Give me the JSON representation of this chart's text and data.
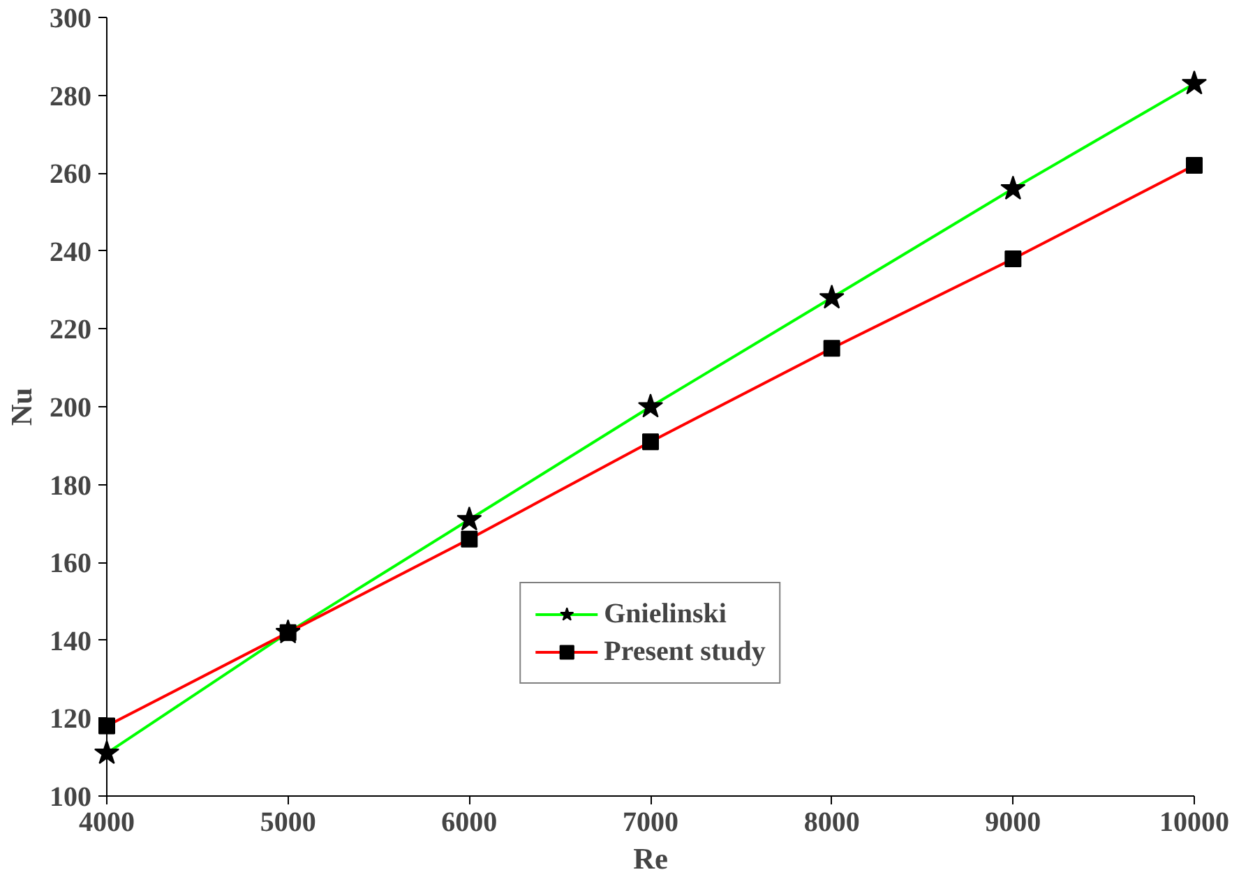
{
  "chart_data": {
    "type": "line",
    "xlabel": "Re",
    "ylabel": "Nu",
    "x": [
      4000,
      5000,
      6000,
      7000,
      8000,
      9000,
      10000
    ],
    "xlim": [
      4000,
      10000
    ],
    "xticks": [
      4000,
      5000,
      6000,
      7000,
      8000,
      9000,
      10000
    ],
    "ylim": [
      100,
      300
    ],
    "yticks": [
      100,
      120,
      140,
      160,
      180,
      200,
      220,
      240,
      260,
      280,
      300
    ],
    "grid": false,
    "legend": "bottom",
    "line_style": "solid",
    "series": [
      {
        "name": "Gnielinski",
        "color": "#00ff00",
        "marker": "star",
        "values": [
          111,
          142,
          171,
          200,
          228,
          256,
          283
        ]
      },
      {
        "name": "Present study",
        "color": "#ff0000",
        "marker": "square",
        "values": [
          118,
          142,
          166,
          191,
          215,
          238,
          262
        ]
      }
    ]
  }
}
